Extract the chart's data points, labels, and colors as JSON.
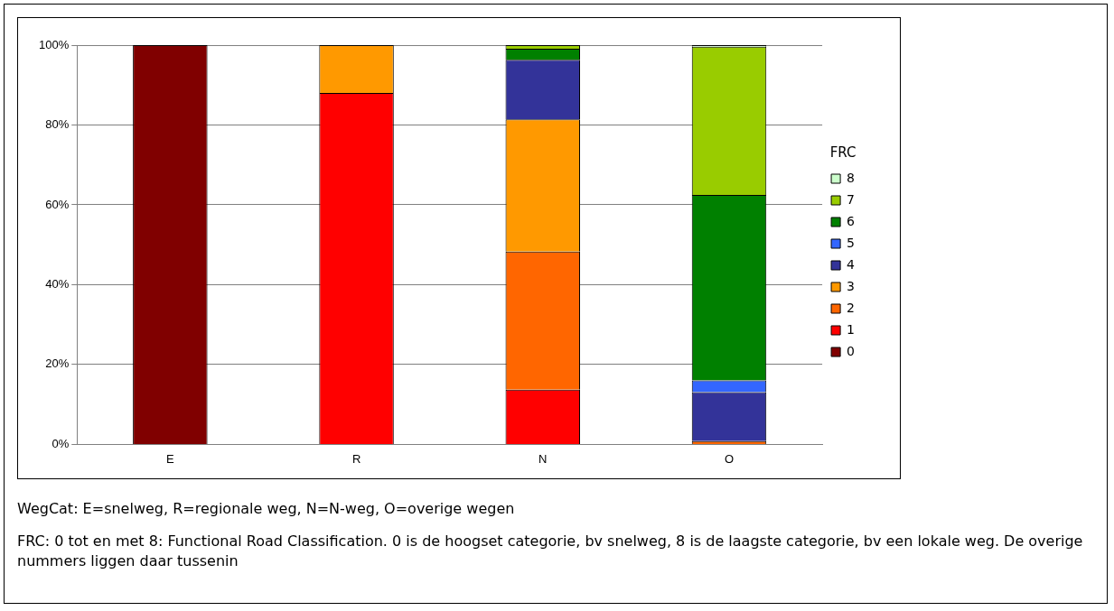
{
  "chart_data": {
    "type": "bar",
    "stacked": true,
    "categories": [
      "E",
      "R",
      "N",
      "O"
    ],
    "series": [
      {
        "name": "0",
        "color": "#800000",
        "values": [
          100,
          null,
          null,
          null
        ]
      },
      {
        "name": "1",
        "color": "#ff0000",
        "values": [
          null,
          88,
          13.7,
          null
        ]
      },
      {
        "name": "2",
        "color": "#ff6600",
        "values": [
          null,
          null,
          34.6,
          0.8
        ]
      },
      {
        "name": "3",
        "color": "#ff9900",
        "values": [
          null,
          12,
          33.1,
          null
        ]
      },
      {
        "name": "4",
        "color": "#333399",
        "values": [
          null,
          null,
          14.9,
          12.3
        ]
      },
      {
        "name": "5",
        "color": "#3366ff",
        "values": [
          null,
          null,
          null,
          2.9
        ]
      },
      {
        "name": "6",
        "color": "#008000",
        "values": [
          null,
          null,
          2.8,
          46.5
        ]
      },
      {
        "name": "7",
        "color": "#99cc00",
        "values": [
          null,
          null,
          0.9,
          37.1
        ]
      },
      {
        "name": "8",
        "color": "#ccffcc",
        "values": [
          null,
          null,
          null,
          0.4
        ]
      }
    ],
    "ylim": [
      0,
      100
    ],
    "yticks": [
      {
        "value": 0,
        "label": "0%"
      },
      {
        "value": 20,
        "label": "20%"
      },
      {
        "value": 40,
        "label": "40%"
      },
      {
        "value": 60,
        "label": "60%"
      },
      {
        "value": 80,
        "label": "80%"
      },
      {
        "value": 100,
        "label": "100%"
      }
    ],
    "grid": "y",
    "legend": "right",
    "legend_title": "FRC",
    "annotations": [
      "WegCat: E=snelweg, R=regionale weg, N=N-weg, O=overige wegen",
      "FRC: 0 tot en met 8: Functional Road Classification. 0 is de hoogset categorie, bv snelweg, 8 is de laagste categorie, bv een lokale weg. De overige nummers liggen daar tussenin"
    ]
  }
}
